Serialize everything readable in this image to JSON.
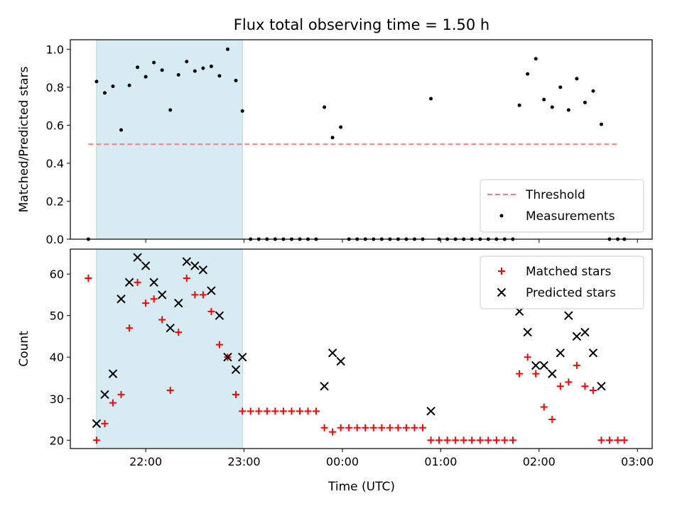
{
  "title": "Flux total observing time = 1.50 h",
  "xlabel": "Time (UTC)",
  "x_ticks": [
    "22:00",
    "23:00",
    "00:00",
    "01:00",
    "02:00",
    "03:00"
  ],
  "colors": {
    "threshold": "#f08080",
    "measurements": "#000000",
    "matched": "#ff0000",
    "predicted": "#000000",
    "shade": "#add8e6"
  },
  "chart_data": [
    {
      "type": "scatter",
      "ylabel": "Matched/Predicted stars",
      "xlim": [
        "21:14",
        "03:09"
      ],
      "ylim": [
        0,
        1.05
      ],
      "y_ticks": [
        "0.0",
        "0.2",
        "0.4",
        "0.6",
        "0.8",
        "1.0"
      ],
      "shaded_interval": [
        "21:30",
        "22:59"
      ],
      "threshold": {
        "name": "Threshold",
        "value": 0.5,
        "x_range": [
          "21:25",
          "02:49"
        ]
      },
      "legend": "lower-right",
      "series": [
        {
          "name": "Measurements",
          "points": [
            [
              "21:25",
              0.0
            ],
            [
              "21:30",
              0.83
            ],
            [
              "21:35",
              0.77
            ],
            [
              "21:40",
              0.805
            ],
            [
              "21:45",
              0.575
            ],
            [
              "21:50",
              0.81
            ],
            [
              "21:55",
              0.905
            ],
            [
              "22:00",
              0.855
            ],
            [
              "22:05",
              0.93
            ],
            [
              "22:10",
              0.89
            ],
            [
              "22:15",
              0.68
            ],
            [
              "22:20",
              0.865
            ],
            [
              "22:25",
              0.935
            ],
            [
              "22:30",
              0.885
            ],
            [
              "22:35",
              0.9
            ],
            [
              "22:40",
              0.91
            ],
            [
              "22:45",
              0.86
            ],
            [
              "22:50",
              1.0
            ],
            [
              "22:55",
              0.835
            ],
            [
              "22:59",
              0.675
            ],
            [
              "23:04",
              0.0
            ],
            [
              "23:09",
              0.0
            ],
            [
              "23:14",
              0.0
            ],
            [
              "23:19",
              0.0
            ],
            [
              "23:24",
              0.0
            ],
            [
              "23:29",
              0.0
            ],
            [
              "23:34",
              0.0
            ],
            [
              "23:39",
              0.0
            ],
            [
              "23:44",
              0.0
            ],
            [
              "23:49",
              0.695
            ],
            [
              "23:54",
              0.535
            ],
            [
              "23:59",
              0.59
            ],
            [
              "00:04",
              0.0
            ],
            [
              "00:09",
              0.0
            ],
            [
              "00:14",
              0.0
            ],
            [
              "00:19",
              0.0
            ],
            [
              "00:24",
              0.0
            ],
            [
              "00:29",
              0.0
            ],
            [
              "00:34",
              0.0
            ],
            [
              "00:39",
              0.0
            ],
            [
              "00:44",
              0.0
            ],
            [
              "00:49",
              0.0
            ],
            [
              "00:54",
              0.74
            ],
            [
              "00:59",
              0.0
            ],
            [
              "01:04",
              0.0
            ],
            [
              "01:09",
              0.0
            ],
            [
              "01:14",
              0.0
            ],
            [
              "01:19",
              0.0
            ],
            [
              "01:24",
              0.0
            ],
            [
              "01:29",
              0.0
            ],
            [
              "01:34",
              0.0
            ],
            [
              "01:39",
              0.0
            ],
            [
              "01:44",
              0.0
            ],
            [
              "01:48",
              0.705
            ],
            [
              "01:53",
              0.87
            ],
            [
              "01:58",
              0.95
            ],
            [
              "02:03",
              0.735
            ],
            [
              "02:08",
              0.695
            ],
            [
              "02:13",
              0.8
            ],
            [
              "02:18",
              0.68
            ],
            [
              "02:23",
              0.845
            ],
            [
              "02:28",
              0.72
            ],
            [
              "02:33",
              0.78
            ],
            [
              "02:38",
              0.605
            ],
            [
              "02:43",
              0.0
            ],
            [
              "02:48",
              0.0
            ],
            [
              "02:52",
              0.0
            ]
          ]
        }
      ]
    },
    {
      "type": "scatter",
      "ylabel": "Count",
      "xlim": [
        "21:14",
        "03:09"
      ],
      "ylim": [
        18,
        66
      ],
      "y_ticks": [
        "20",
        "30",
        "40",
        "50",
        "60"
      ],
      "shaded_interval": [
        "21:30",
        "22:59"
      ],
      "legend": "top-right",
      "series": [
        {
          "name": "Matched stars",
          "marker": "plus",
          "points": [
            [
              "21:25",
              59
            ],
            [
              "21:30",
              20
            ],
            [
              "21:35",
              24
            ],
            [
              "21:40",
              29
            ],
            [
              "21:45",
              31
            ],
            [
              "21:50",
              47
            ],
            [
              "21:55",
              58
            ],
            [
              "22:00",
              53
            ],
            [
              "22:05",
              54
            ],
            [
              "22:10",
              49
            ],
            [
              "22:15",
              32
            ],
            [
              "22:20",
              46
            ],
            [
              "22:25",
              59
            ],
            [
              "22:30",
              55
            ],
            [
              "22:35",
              55
            ],
            [
              "22:40",
              51
            ],
            [
              "22:45",
              43
            ],
            [
              "22:50",
              40
            ],
            [
              "22:55",
              31
            ],
            [
              "22:59",
              27
            ],
            [
              "23:04",
              27
            ],
            [
              "23:09",
              27
            ],
            [
              "23:14",
              27
            ],
            [
              "23:19",
              27
            ],
            [
              "23:24",
              27
            ],
            [
              "23:29",
              27
            ],
            [
              "23:34",
              27
            ],
            [
              "23:39",
              27
            ],
            [
              "23:44",
              27
            ],
            [
              "23:49",
              23
            ],
            [
              "23:54",
              22
            ],
            [
              "23:59",
              23
            ],
            [
              "00:04",
              23
            ],
            [
              "00:09",
              23
            ],
            [
              "00:14",
              23
            ],
            [
              "00:19",
              23
            ],
            [
              "00:24",
              23
            ],
            [
              "00:29",
              23
            ],
            [
              "00:34",
              23
            ],
            [
              "00:39",
              23
            ],
            [
              "00:44",
              23
            ],
            [
              "00:49",
              23
            ],
            [
              "00:54",
              20
            ],
            [
              "00:59",
              20
            ],
            [
              "01:04",
              20
            ],
            [
              "01:09",
              20
            ],
            [
              "01:14",
              20
            ],
            [
              "01:19",
              20
            ],
            [
              "01:24",
              20
            ],
            [
              "01:29",
              20
            ],
            [
              "01:34",
              20
            ],
            [
              "01:39",
              20
            ],
            [
              "01:44",
              20
            ],
            [
              "01:48",
              36
            ],
            [
              "01:53",
              40
            ],
            [
              "01:58",
              36
            ],
            [
              "02:03",
              28
            ],
            [
              "02:08",
              25
            ],
            [
              "02:13",
              33
            ],
            [
              "02:18",
              34
            ],
            [
              "02:23",
              38
            ],
            [
              "02:28",
              33
            ],
            [
              "02:33",
              32
            ],
            [
              "02:38",
              20
            ],
            [
              "02:43",
              20
            ],
            [
              "02:48",
              20
            ],
            [
              "02:52",
              20
            ]
          ]
        },
        {
          "name": "Predicted stars",
          "marker": "x",
          "points": [
            [
              "21:30",
              24
            ],
            [
              "21:35",
              31
            ],
            [
              "21:40",
              36
            ],
            [
              "21:45",
              54
            ],
            [
              "21:50",
              58
            ],
            [
              "21:55",
              64
            ],
            [
              "22:00",
              62
            ],
            [
              "22:05",
              58
            ],
            [
              "22:10",
              55
            ],
            [
              "22:15",
              47
            ],
            [
              "22:20",
              53
            ],
            [
              "22:25",
              63
            ],
            [
              "22:30",
              62
            ],
            [
              "22:35",
              61
            ],
            [
              "22:40",
              56
            ],
            [
              "22:45",
              50
            ],
            [
              "22:50",
              40
            ],
            [
              "22:55",
              37
            ],
            [
              "22:59",
              40
            ],
            [
              "23:49",
              33
            ],
            [
              "23:54",
              41
            ],
            [
              "23:59",
              39
            ],
            [
              "00:54",
              27
            ],
            [
              "01:48",
              51
            ],
            [
              "01:53",
              46
            ],
            [
              "01:58",
              38
            ],
            [
              "02:03",
              38
            ],
            [
              "02:08",
              36
            ],
            [
              "02:13",
              41
            ],
            [
              "02:18",
              50
            ],
            [
              "02:23",
              45
            ],
            [
              "02:28",
              46
            ],
            [
              "02:33",
              41
            ],
            [
              "02:38",
              33
            ]
          ]
        }
      ]
    }
  ]
}
